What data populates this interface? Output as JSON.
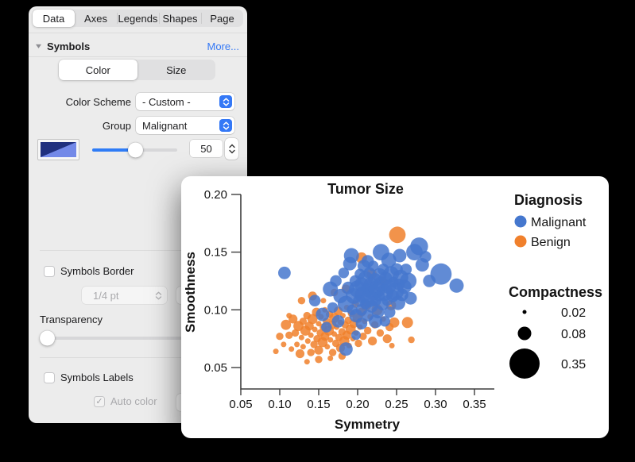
{
  "inspector": {
    "tabs": [
      "Data",
      "Axes",
      "Legends",
      "Shapes",
      "Page"
    ],
    "active_tab": "Data",
    "section": {
      "title": "Symbols",
      "more_link": "More..."
    },
    "mode_tabs": {
      "options": [
        "Color",
        "Size"
      ],
      "active": "Color"
    },
    "color_scheme": {
      "label": "Color Scheme",
      "value": "- Custom -"
    },
    "group": {
      "label": "Group",
      "value": "Malignant"
    },
    "symbol_size": {
      "slider_percent": 50,
      "value": "50"
    },
    "symbols_border": {
      "label": "Symbols Border",
      "checked": false,
      "width_value": "1/4 pt"
    },
    "transparency": {
      "label": "Transparency",
      "slider_percent": 0
    },
    "symbols_labels": {
      "label": "Symbols Labels",
      "checked": false
    },
    "auto_color": {
      "label": "Auto color",
      "checked": true,
      "enabled": false
    },
    "accent_color": "#3478f6"
  },
  "chart_data": {
    "type": "scatter",
    "title": "Tumor Size",
    "xlabel": "Symmetry",
    "ylabel": "Smoothness",
    "xlim": [
      0.05,
      0.375
    ],
    "ylim": [
      0.035,
      0.2
    ],
    "x_ticks": [
      0.05,
      0.1,
      0.15,
      0.2,
      0.25,
      0.3,
      0.35
    ],
    "y_ticks": [
      0.05,
      0.1,
      0.15,
      0.2
    ],
    "grid": false,
    "legend": {
      "title": "Diagnosis",
      "position": "right"
    },
    "size_legend": {
      "title": "Compactness",
      "values": [
        0.02,
        0.08,
        0.35
      ],
      "labels": [
        "0.02",
        "0.08",
        "0.35"
      ]
    },
    "point_format": "[symmetry, smoothness, compactness]",
    "series": [
      {
        "name": "Malignant",
        "color": "#4577CE",
        "points": [
          [
            0.165,
            0.118,
            0.1
          ],
          [
            0.172,
            0.125,
            0.06
          ],
          [
            0.178,
            0.112,
            0.09
          ],
          [
            0.182,
            0.132,
            0.05
          ],
          [
            0.185,
            0.105,
            0.12
          ],
          [
            0.188,
            0.119,
            0.07
          ],
          [
            0.19,
            0.14,
            0.08
          ],
          [
            0.192,
            0.147,
            0.1
          ],
          [
            0.193,
            0.1,
            0.05
          ],
          [
            0.195,
            0.112,
            0.11
          ],
          [
            0.197,
            0.125,
            0.06
          ],
          [
            0.198,
            0.095,
            0.08
          ],
          [
            0.2,
            0.118,
            0.13
          ],
          [
            0.202,
            0.108,
            0.07
          ],
          [
            0.203,
            0.131,
            0.05
          ],
          [
            0.205,
            0.122,
            0.09
          ],
          [
            0.205,
            0.1,
            0.06
          ],
          [
            0.207,
            0.113,
            0.12
          ],
          [
            0.208,
            0.138,
            0.07
          ],
          [
            0.21,
            0.105,
            0.05
          ],
          [
            0.21,
            0.127,
            0.1
          ],
          [
            0.212,
            0.117,
            0.08
          ],
          [
            0.213,
            0.095,
            0.06
          ],
          [
            0.215,
            0.11,
            0.14
          ],
          [
            0.215,
            0.132,
            0.06
          ],
          [
            0.217,
            0.122,
            0.09
          ],
          [
            0.218,
            0.103,
            0.07
          ],
          [
            0.22,
            0.115,
            0.11
          ],
          [
            0.22,
            0.138,
            0.05
          ],
          [
            0.222,
            0.126,
            0.08
          ],
          [
            0.223,
            0.108,
            0.06
          ],
          [
            0.225,
            0.118,
            0.13
          ],
          [
            0.226,
            0.098,
            0.07
          ],
          [
            0.228,
            0.13,
            0.09
          ],
          [
            0.228,
            0.112,
            0.05
          ],
          [
            0.23,
            0.122,
            0.1
          ],
          [
            0.232,
            0.105,
            0.07
          ],
          [
            0.233,
            0.135,
            0.06
          ],
          [
            0.235,
            0.115,
            0.12
          ],
          [
            0.236,
            0.127,
            0.08
          ],
          [
            0.238,
            0.108,
            0.05
          ],
          [
            0.24,
            0.12,
            0.09
          ],
          [
            0.241,
            0.098,
            0.06
          ],
          [
            0.243,
            0.131,
            0.11
          ],
          [
            0.245,
            0.112,
            0.07
          ],
          [
            0.246,
            0.124,
            0.05
          ],
          [
            0.248,
            0.116,
            0.14
          ],
          [
            0.25,
            0.135,
            0.07
          ],
          [
            0.252,
            0.106,
            0.09
          ],
          [
            0.253,
            0.122,
            0.06
          ],
          [
            0.255,
            0.128,
            0.11
          ],
          [
            0.257,
            0.113,
            0.07
          ],
          [
            0.26,
            0.12,
            0.09
          ],
          [
            0.262,
            0.135,
            0.06
          ],
          [
            0.265,
            0.125,
            0.12
          ],
          [
            0.268,
            0.11,
            0.07
          ],
          [
            0.273,
            0.15,
            0.12
          ],
          [
            0.279,
            0.155,
            0.14
          ],
          [
            0.283,
            0.139,
            0.08
          ],
          [
            0.287,
            0.146,
            0.06
          ],
          [
            0.307,
            0.131,
            0.2
          ],
          [
            0.327,
            0.121,
            0.09
          ],
          [
            0.292,
            0.125,
            0.07
          ],
          [
            0.24,
            0.143,
            0.1
          ],
          [
            0.254,
            0.147,
            0.08
          ],
          [
            0.23,
            0.15,
            0.12
          ],
          [
            0.106,
            0.132,
            0.07
          ],
          [
            0.145,
            0.108,
            0.06
          ],
          [
            0.155,
            0.096,
            0.08
          ],
          [
            0.16,
            0.085,
            0.05
          ],
          [
            0.175,
            0.09,
            0.07
          ],
          [
            0.185,
            0.066,
            0.08
          ],
          [
            0.205,
            0.088,
            0.06
          ],
          [
            0.223,
            0.09,
            0.08
          ],
          [
            0.235,
            0.09,
            0.05
          ],
          [
            0.198,
            0.078,
            0.04
          ],
          [
            0.168,
            0.102,
            0.05
          ],
          [
            0.213,
            0.142,
            0.07
          ]
        ]
      },
      {
        "name": "Benign",
        "color": "#F0802C",
        "points": [
          [
            0.095,
            0.064,
            0.014
          ],
          [
            0.1,
            0.077,
            0.025
          ],
          [
            0.105,
            0.07,
            0.014
          ],
          [
            0.108,
            0.087,
            0.045
          ],
          [
            0.112,
            0.078,
            0.025
          ],
          [
            0.115,
            0.066,
            0.014
          ],
          [
            0.117,
            0.092,
            0.035
          ],
          [
            0.12,
            0.08,
            0.025
          ],
          [
            0.122,
            0.07,
            0.014
          ],
          [
            0.124,
            0.086,
            0.045
          ],
          [
            0.126,
            0.062,
            0.035
          ],
          [
            0.128,
            0.076,
            0.014
          ],
          [
            0.13,
            0.09,
            0.025
          ],
          [
            0.13,
            0.068,
            0.014
          ],
          [
            0.133,
            0.082,
            0.045
          ],
          [
            0.135,
            0.095,
            0.025
          ],
          [
            0.136,
            0.073,
            0.014
          ],
          [
            0.138,
            0.086,
            0.035
          ],
          [
            0.14,
            0.063,
            0.025
          ],
          [
            0.14,
            0.078,
            0.014
          ],
          [
            0.142,
            0.092,
            0.045
          ],
          [
            0.144,
            0.07,
            0.025
          ],
          [
            0.145,
            0.083,
            0.014
          ],
          [
            0.147,
            0.098,
            0.035
          ],
          [
            0.148,
            0.075,
            0.025
          ],
          [
            0.15,
            0.088,
            0.014
          ],
          [
            0.15,
            0.065,
            0.035
          ],
          [
            0.152,
            0.08,
            0.025
          ],
          [
            0.153,
            0.094,
            0.014
          ],
          [
            0.155,
            0.072,
            0.045
          ],
          [
            0.156,
            0.085,
            0.025
          ],
          [
            0.158,
            0.1,
            0.014
          ],
          [
            0.158,
            0.077,
            0.035
          ],
          [
            0.16,
            0.09,
            0.025
          ],
          [
            0.161,
            0.068,
            0.014
          ],
          [
            0.163,
            0.082,
            0.045
          ],
          [
            0.164,
            0.096,
            0.025
          ],
          [
            0.165,
            0.074,
            0.014
          ],
          [
            0.167,
            0.087,
            0.035
          ],
          [
            0.168,
            0.063,
            0.025
          ],
          [
            0.17,
            0.079,
            0.014
          ],
          [
            0.17,
            0.093,
            0.045
          ],
          [
            0.172,
            0.071,
            0.025
          ],
          [
            0.173,
            0.085,
            0.014
          ],
          [
            0.175,
            0.099,
            0.035
          ],
          [
            0.176,
            0.076,
            0.025
          ],
          [
            0.178,
            0.089,
            0.014
          ],
          [
            0.178,
            0.067,
            0.035
          ],
          [
            0.18,
            0.081,
            0.025
          ],
          [
            0.181,
            0.095,
            0.014
          ],
          [
            0.183,
            0.073,
            0.045
          ],
          [
            0.184,
            0.087,
            0.025
          ],
          [
            0.186,
            0.102,
            0.014
          ],
          [
            0.186,
            0.078,
            0.035
          ],
          [
            0.188,
            0.091,
            0.025
          ],
          [
            0.189,
            0.069,
            0.014
          ],
          [
            0.191,
            0.083,
            0.045
          ],
          [
            0.192,
            0.097,
            0.025
          ],
          [
            0.194,
            0.075,
            0.014
          ],
          [
            0.195,
            0.088,
            0.035
          ],
          [
            0.197,
            0.105,
            0.025
          ],
          [
            0.198,
            0.08,
            0.014
          ],
          [
            0.2,
            0.093,
            0.045
          ],
          [
            0.201,
            0.071,
            0.025
          ],
          [
            0.203,
            0.085,
            0.014
          ],
          [
            0.205,
            0.098,
            0.035
          ],
          [
            0.207,
            0.077,
            0.025
          ],
          [
            0.209,
            0.09,
            0.014
          ],
          [
            0.211,
            0.104,
            0.045
          ],
          [
            0.213,
            0.082,
            0.025
          ],
          [
            0.216,
            0.094,
            0.014
          ],
          [
            0.219,
            0.073,
            0.035
          ],
          [
            0.222,
            0.087,
            0.025
          ],
          [
            0.225,
            0.1,
            0.055
          ],
          [
            0.229,
            0.08,
            0.025
          ],
          [
            0.233,
            0.092,
            0.014
          ],
          [
            0.238,
            0.075,
            0.035
          ],
          [
            0.243,
            0.104,
            0.045
          ],
          [
            0.251,
            0.165,
            0.12
          ],
          [
            0.205,
            0.145,
            0.055
          ],
          [
            0.218,
            0.131,
            0.045
          ],
          [
            0.232,
            0.125,
            0.035
          ],
          [
            0.247,
            0.089,
            0.045
          ],
          [
            0.264,
            0.089,
            0.055
          ],
          [
            0.135,
            0.055,
            0.014
          ],
          [
            0.15,
            0.057,
            0.025
          ],
          [
            0.165,
            0.058,
            0.014
          ],
          [
            0.18,
            0.06,
            0.025
          ],
          [
            0.128,
            0.108,
            0.025
          ],
          [
            0.142,
            0.112,
            0.035
          ],
          [
            0.156,
            0.108,
            0.014
          ],
          [
            0.17,
            0.115,
            0.025
          ],
          [
            0.185,
            0.118,
            0.035
          ],
          [
            0.112,
            0.095,
            0.014
          ],
          [
            0.269,
            0.074,
            0.02
          ],
          [
            0.244,
            0.069,
            0.014
          ],
          [
            0.241,
            0.085,
            0.03
          ]
        ]
      }
    ]
  }
}
